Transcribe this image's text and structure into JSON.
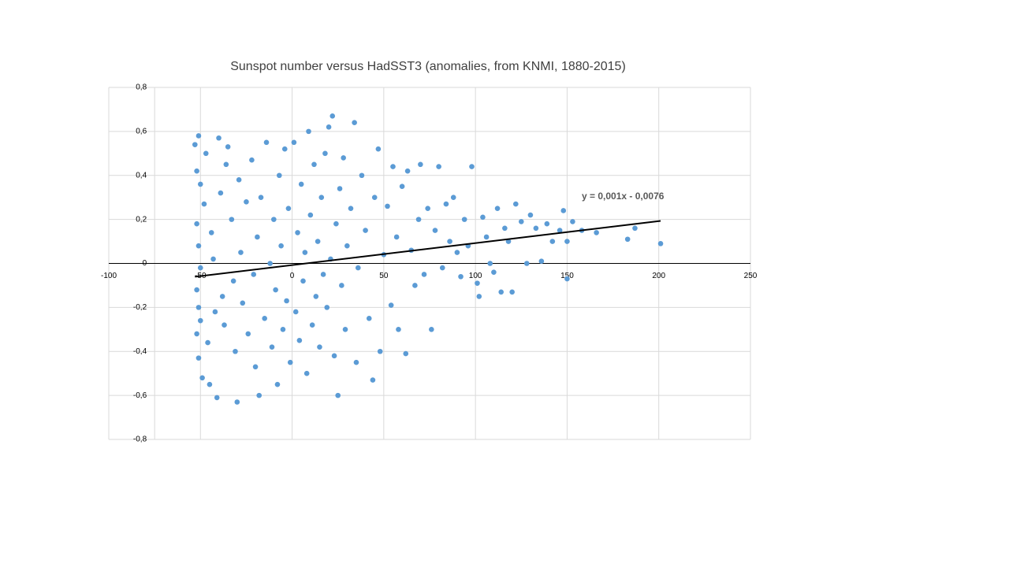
{
  "chart_data": {
    "type": "scatter",
    "title": "Sunspot number versus HadSST3 (anomalies, from KNMI, 1880-2015)",
    "color": "#5b9bd5",
    "x": [
      -53,
      -52,
      -51,
      -50,
      -52,
      -51,
      -50,
      -52,
      -51,
      -50,
      -52,
      -51,
      -49,
      -48,
      -47,
      -46,
      -45,
      -44,
      -43,
      -42,
      -41,
      -40,
      -39,
      -38,
      -37,
      -36,
      -35,
      -33,
      -32,
      -31,
      -30,
      -29,
      -28,
      -27,
      -25,
      -24,
      -22,
      -21,
      -20,
      -19,
      -18,
      -17,
      -15,
      -14,
      -12,
      -11,
      -10,
      -9,
      -8,
      -7,
      -6,
      -5,
      -4,
      -3,
      -2,
      -1,
      1,
      2,
      3,
      4,
      5,
      6,
      7,
      8,
      9,
      10,
      11,
      12,
      13,
      14,
      15,
      16,
      17,
      18,
      19,
      20,
      21,
      22,
      23,
      24,
      25,
      26,
      27,
      28,
      29,
      30,
      32,
      34,
      35,
      36,
      38,
      40,
      42,
      44,
      45,
      47,
      48,
      50,
      52,
      54,
      55,
      57,
      58,
      60,
      62,
      63,
      65,
      67,
      69,
      70,
      72,
      74,
      76,
      78,
      80,
      82,
      84,
      86,
      88,
      90,
      92,
      94,
      96,
      98,
      101,
      102,
      104,
      106,
      108,
      110,
      112,
      114,
      116,
      118,
      120,
      122,
      125,
      128,
      130,
      133,
      136,
      139,
      142,
      146,
      148,
      150,
      150,
      153,
      158,
      166,
      183,
      187,
      201
    ],
    "values": [
      0.54,
      0.42,
      0.58,
      0.36,
      0.18,
      0.08,
      -0.02,
      -0.12,
      -0.2,
      -0.26,
      -0.32,
      -0.43,
      -0.52,
      0.27,
      0.5,
      -0.36,
      -0.55,
      0.14,
      0.02,
      -0.22,
      -0.61,
      0.57,
      0.32,
      -0.15,
      -0.28,
      0.45,
      0.53,
      0.2,
      -0.08,
      -0.4,
      -0.63,
      0.38,
      0.05,
      -0.18,
      0.28,
      -0.32,
      0.47,
      -0.05,
      -0.47,
      0.12,
      -0.6,
      0.3,
      -0.25,
      0.55,
      0.0,
      -0.38,
      0.2,
      -0.12,
      -0.55,
      0.4,
      0.08,
      -0.3,
      0.52,
      -0.17,
      0.25,
      -0.45,
      0.55,
      -0.22,
      0.14,
      -0.35,
      0.36,
      -0.08,
      0.05,
      -0.5,
      0.6,
      0.22,
      -0.28,
      0.45,
      -0.15,
      0.1,
      -0.38,
      0.3,
      -0.05,
      0.5,
      -0.2,
      0.62,
      0.02,
      0.67,
      -0.42,
      0.18,
      -0.6,
      0.34,
      -0.1,
      0.48,
      -0.3,
      0.08,
      0.25,
      0.64,
      -0.45,
      -0.02,
      0.4,
      0.15,
      -0.25,
      -0.53,
      0.3,
      0.52,
      -0.4,
      0.04,
      0.26,
      -0.19,
      0.44,
      0.12,
      -0.3,
      0.35,
      -0.41,
      0.42,
      0.06,
      -0.1,
      0.2,
      0.45,
      -0.05,
      0.25,
      -0.3,
      0.15,
      0.44,
      -0.02,
      0.27,
      0.1,
      0.3,
      0.05,
      -0.06,
      0.2,
      0.08,
      0.44,
      -0.09,
      -0.15,
      0.21,
      0.12,
      0.0,
      -0.04,
      0.25,
      -0.13,
      0.16,
      0.1,
      -0.13,
      0.27,
      0.19,
      0.0,
      0.22,
      0.16,
      0.01,
      0.18,
      0.1,
      0.15,
      0.24,
      0.1,
      -0.07,
      0.19,
      0.15,
      0.14,
      0.11,
      0.16,
      0.09
    ],
    "trendline": {
      "label": "y = 0,001x - 0,0076",
      "slope": 0.001,
      "intercept": -0.0076,
      "x": [
        -53,
        201
      ]
    },
    "xlim": [
      -100,
      250
    ],
    "xticks": [
      -100,
      -50,
      0,
      50,
      100,
      150,
      200,
      250
    ],
    "ylim": [
      -0.8,
      0.8
    ],
    "yticks": [
      {
        "value": -0.8,
        "label": "-0,8"
      },
      {
        "value": -0.6,
        "label": "-0,6"
      },
      {
        "value": -0.4,
        "label": "-0,4"
      },
      {
        "value": -0.2,
        "label": "-0,2"
      },
      0,
      {
        "value": 0.2,
        "label": "0,2"
      },
      {
        "value": 0.4,
        "label": "0,4"
      },
      {
        "value": 0.6,
        "label": "0,6"
      },
      {
        "value": 0.8,
        "label": "0,8"
      }
    ],
    "yaxis_crosses": -75,
    "grid": true
  }
}
